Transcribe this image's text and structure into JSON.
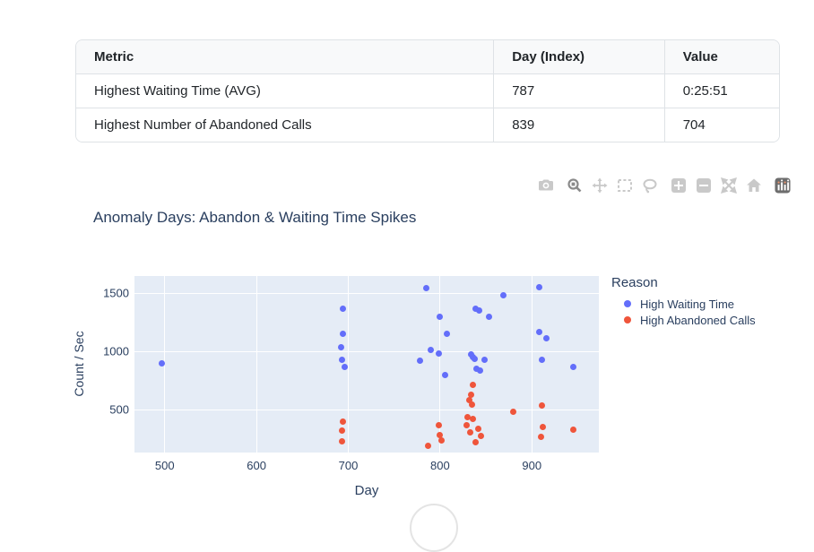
{
  "table": {
    "headers": [
      "Metric",
      "Day (Index)",
      "Value"
    ],
    "rows": [
      {
        "metric": "Highest Waiting Time (AVG)",
        "day": "787",
        "value": "0:25:51"
      },
      {
        "metric": "Highest Number of Abandoned Calls",
        "day": "839",
        "value": "704"
      }
    ]
  },
  "modebar": {
    "buttons": [
      "download-plot-camera",
      "zoom",
      "pan",
      "box-select",
      "lasso-select",
      "zoom-in",
      "zoom-out",
      "autoscale",
      "reset-axes-home",
      "plotly-logo"
    ],
    "active_button": "zoom"
  },
  "chart_data": {
    "type": "scatter",
    "title": "Anomaly Days: Abandon & Waiting Time Spikes",
    "xlabel": "Day",
    "ylabel": "Count / Sec",
    "xlim": [
      467,
      973
    ],
    "ylim": [
      133,
      1648
    ],
    "xticks": [
      500,
      600,
      700,
      800,
      900
    ],
    "yticks": [
      500,
      1000,
      1500
    ],
    "grid": true,
    "plot_bg": "#E5ECF6",
    "grid_color": "#FFFFFF",
    "legend_title": "Reason",
    "legend_position": "right",
    "series": [
      {
        "name": "High Waiting Time",
        "color": "#636EFA",
        "points": [
          [
            497,
            900
          ],
          [
            694,
            1370
          ],
          [
            694,
            1150
          ],
          [
            692,
            1040
          ],
          [
            693,
            930
          ],
          [
            696,
            870
          ],
          [
            785,
            1545
          ],
          [
            800,
            1300
          ],
          [
            807,
            1150
          ],
          [
            790,
            1010
          ],
          [
            799,
            980
          ],
          [
            778,
            925
          ],
          [
            805,
            800
          ],
          [
            839,
            1365
          ],
          [
            843,
            1350
          ],
          [
            853,
            1295
          ],
          [
            834,
            975
          ],
          [
            836,
            955
          ],
          [
            838,
            940
          ],
          [
            848,
            930
          ],
          [
            840,
            855
          ],
          [
            844,
            840
          ],
          [
            869,
            1485
          ],
          [
            908,
            1550
          ],
          [
            908,
            1170
          ],
          [
            916,
            1115
          ],
          [
            911,
            930
          ],
          [
            945,
            865
          ]
        ]
      },
      {
        "name": "High Abandoned Calls",
        "color": "#EF553B",
        "points": [
          [
            694,
            400
          ],
          [
            693,
            320
          ],
          [
            693,
            230
          ],
          [
            787,
            190
          ],
          [
            799,
            370
          ],
          [
            800,
            285
          ],
          [
            802,
            240
          ],
          [
            836,
            710
          ],
          [
            834,
            630
          ],
          [
            832,
            585
          ],
          [
            835,
            545
          ],
          [
            830,
            440
          ],
          [
            836,
            425
          ],
          [
            829,
            370
          ],
          [
            833,
            305
          ],
          [
            842,
            340
          ],
          [
            845,
            275
          ],
          [
            839,
            220
          ],
          [
            880,
            485
          ],
          [
            911,
            535
          ],
          [
            912,
            350
          ],
          [
            910,
            265
          ],
          [
            945,
            330
          ]
        ]
      }
    ]
  },
  "colors": {
    "title_text": "#2a3f5f",
    "table_border": "#dee2e6",
    "table_header_bg": "#f8f9fa"
  }
}
